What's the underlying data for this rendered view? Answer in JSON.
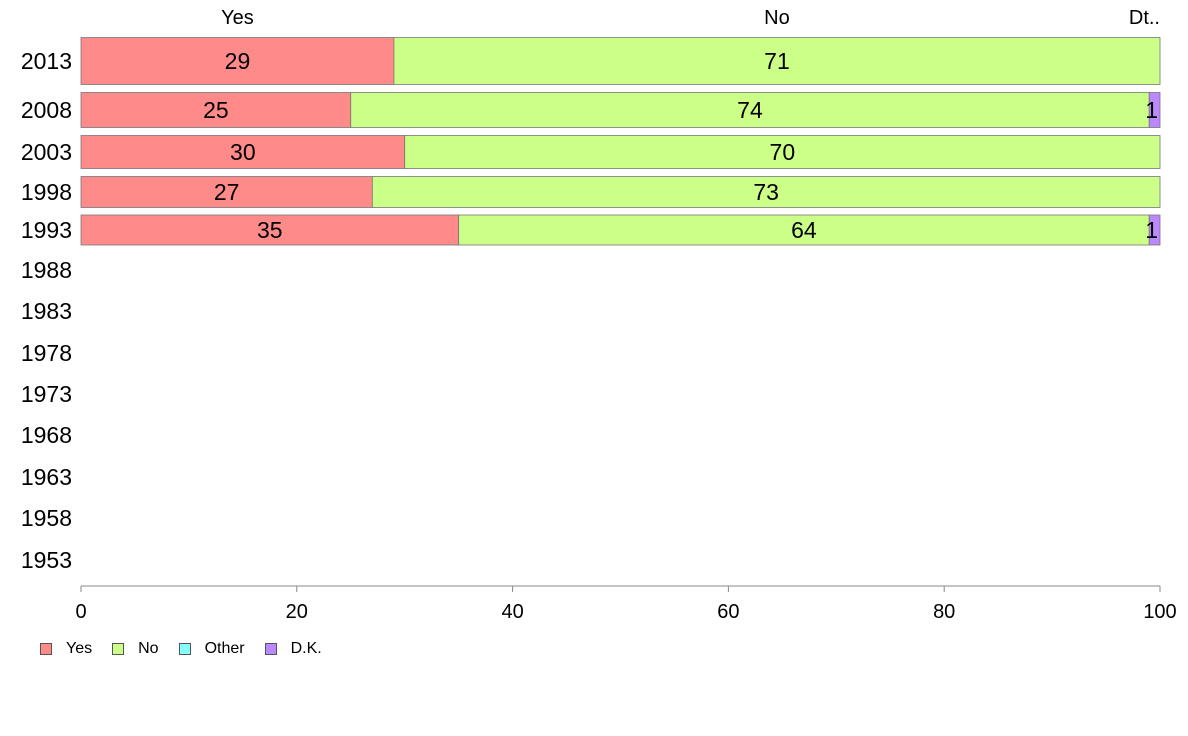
{
  "chart_data": {
    "type": "bar",
    "orientation": "horizontal",
    "stacked": true,
    "xlim": [
      0,
      100
    ],
    "x_ticks": [
      0,
      20,
      40,
      60,
      80,
      100
    ],
    "categories": [
      "2013",
      "2008",
      "2003",
      "1998",
      "1993",
      "1988",
      "1983",
      "1978",
      "1973",
      "1968",
      "1963",
      "1958",
      "1953"
    ],
    "series": [
      {
        "name": "Yes",
        "color": "#ff8a8a",
        "values": [
          29,
          25,
          30,
          27,
          35,
          null,
          null,
          null,
          null,
          null,
          null,
          null,
          null
        ]
      },
      {
        "name": "No",
        "color": "#ccff88",
        "values": [
          71,
          74,
          70,
          73,
          64,
          null,
          null,
          null,
          null,
          null,
          null,
          null,
          null
        ]
      },
      {
        "name": "Other",
        "color": "#88ffff",
        "values": [
          0,
          0,
          0,
          0,
          0,
          null,
          null,
          null,
          null,
          null,
          null,
          null,
          null
        ]
      },
      {
        "name": "D.K.",
        "color": "#bb88ff",
        "values": [
          0,
          1,
          0,
          0,
          1,
          null,
          null,
          null,
          null,
          null,
          null,
          null,
          null
        ]
      }
    ],
    "top_labels": [
      "Yes",
      "No",
      "Dt.."
    ],
    "grid": false,
    "legend_position": "bottom-left"
  }
}
